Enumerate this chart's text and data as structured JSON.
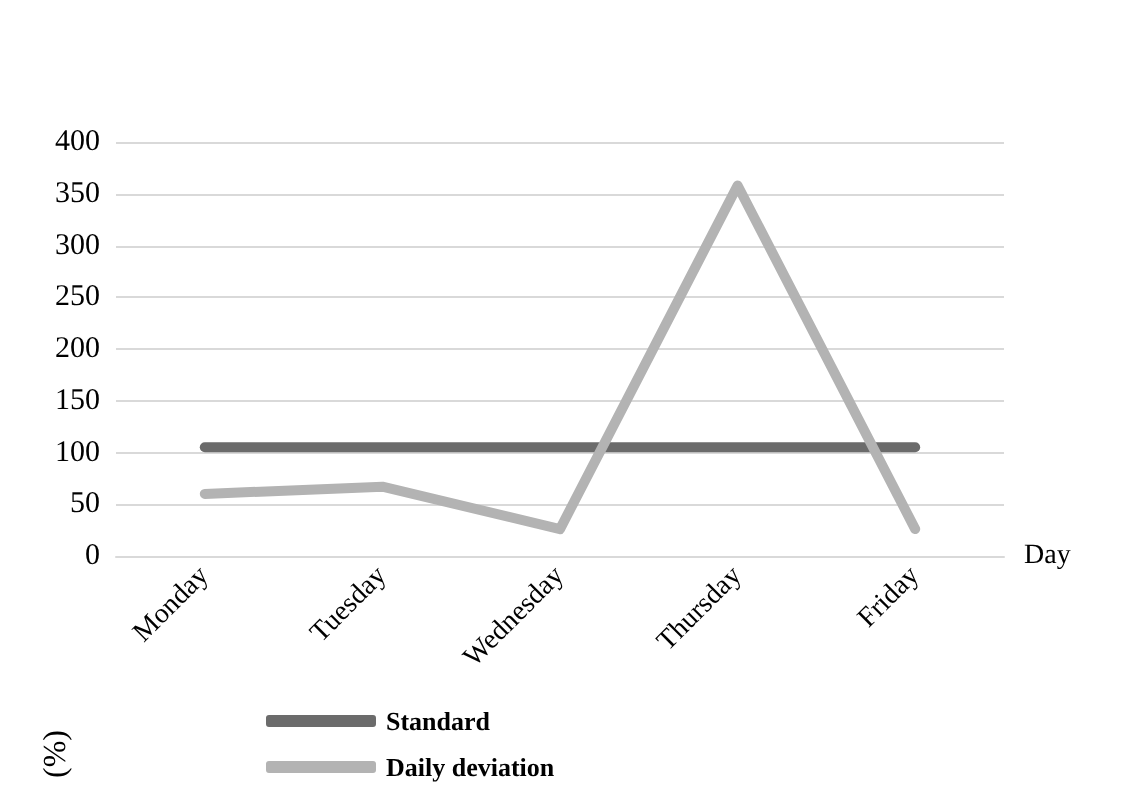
{
  "chart_data": {
    "type": "line",
    "xlabel": "Day",
    "ylabel": "(%)",
    "categories": [
      "Monday",
      "Tuesday",
      "Wednesday",
      "Thursday",
      "Friday"
    ],
    "series": [
      {
        "name": "Standard",
        "color": "#6b6b6b",
        "values": [
          105,
          105,
          105,
          105,
          105
        ]
      },
      {
        "name": "Daily deviation",
        "color": "#b3b3b3",
        "values": [
          60,
          67,
          26,
          358,
          26
        ]
      }
    ],
    "ylim": [
      0,
      400
    ],
    "yticks": [
      0,
      50,
      100,
      150,
      200,
      250,
      300,
      350,
      400
    ],
    "grid": "y",
    "legend": "bottom left",
    "marker": "none",
    "line_style": "solid"
  }
}
